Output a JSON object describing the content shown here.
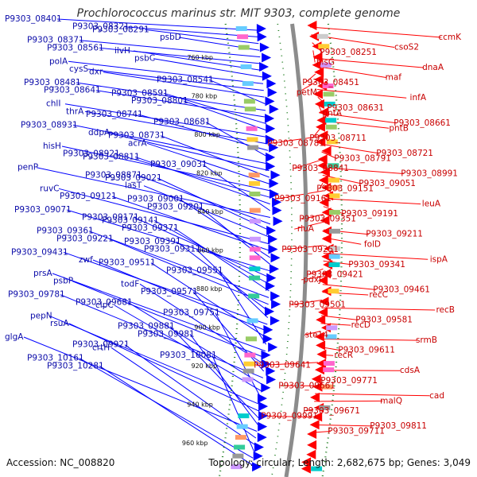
{
  "title": "Prochlorococcus marinus str. MIT 9303, complete genome",
  "accession_label": "Accession: NC_008820",
  "summary_label": "Topology: circular; Length: 2,682,675 bp; Genes: 3,049",
  "kbp_ticks": [
    "760 kbp",
    "780 kbp",
    "800 kbp",
    "820 kbp",
    "840 kbp",
    "860 kbp",
    "880 kbp",
    "900 kbp",
    "920 kbp",
    "940 kbp",
    "960 kbp"
  ],
  "colors": {
    "forward_strand": "#0000ff",
    "reverse_strand": "#ff0000",
    "backbone": "#8c8c8c",
    "gc_dots": "#1a7a1a",
    "title": "#333333"
  },
  "left_labels": [
    "P9303_08401",
    "P9303_08321",
    "P9303_08291",
    "psbD",
    "P9303_08371",
    "P9303_08561",
    "ilvH",
    "psbC",
    "polA",
    "cysS",
    "dxr",
    "P9303_08541",
    "P9303_08481",
    "P9303_08641",
    "P9303_08591",
    "P9303_08801",
    "chlI",
    "thrA",
    "P9303_08741",
    "P9303_08681",
    "P9303_08931",
    "ddpA",
    "P9303_08731",
    "acrA",
    "hisH",
    "P9303_08921",
    "P9303_08811",
    "P9303_09031",
    "penP",
    "P9303_08871",
    "P9303_09021",
    "lasT",
    "ruvC",
    "P9303_09121",
    "P9303_09001",
    "P9303_09201",
    "P9303_09071",
    "P9303_09171",
    "P9303_09141",
    "P9303_09371",
    "P9303_09361",
    "P9303_09221",
    "P9303_09391",
    "P9303_09311",
    "P9303_09431",
    "zwf",
    "P9303_09511",
    "P9303_09551",
    "prsA",
    "psbP",
    "todF",
    "P9303_09571",
    "P9303_09781",
    "P9303_09681",
    "clpC",
    "P9303_09751",
    "pepN",
    "rsuA",
    "P9303_09881",
    "P9303_09981",
    "glgA",
    "P9303_09921",
    "crtH",
    "P9303_10081",
    "P9303_10161",
    "P9303_10281"
  ],
  "right_labels": [
    "ccmK",
    "csoS2",
    "P9303_08251",
    "hisG",
    "dnaA",
    "maf",
    "P9303_08451",
    "petM",
    "infA",
    "P9303_08631",
    "pntA",
    "P9303_08661",
    "pntB",
    "P9303_08711",
    "P9303_08781",
    "P9303_08721",
    "P9303_08791",
    "P9303_08841",
    "P9303_08991",
    "P9303_09051",
    "P9303_09151",
    "P9303_09161",
    "leuA",
    "P9303_09191",
    "P9303_09351",
    "rluA",
    "P9303_09211",
    "folD",
    "P9303_09251",
    "ispA",
    "P9303_09341",
    "P9303_09421",
    "pdxJ",
    "P9303_09461",
    "recC",
    "P9303_09501",
    "recB",
    "P9303_09581",
    "recD",
    "ste14",
    "srmB",
    "P9303_09611",
    "recR",
    "P9303_09641",
    "cdsA",
    "P9303_09771",
    "P9303_09661",
    "cad",
    "malQ",
    "P9303_09671",
    "P9303_09991",
    "P9303_09811",
    "P9303_09711"
  ]
}
